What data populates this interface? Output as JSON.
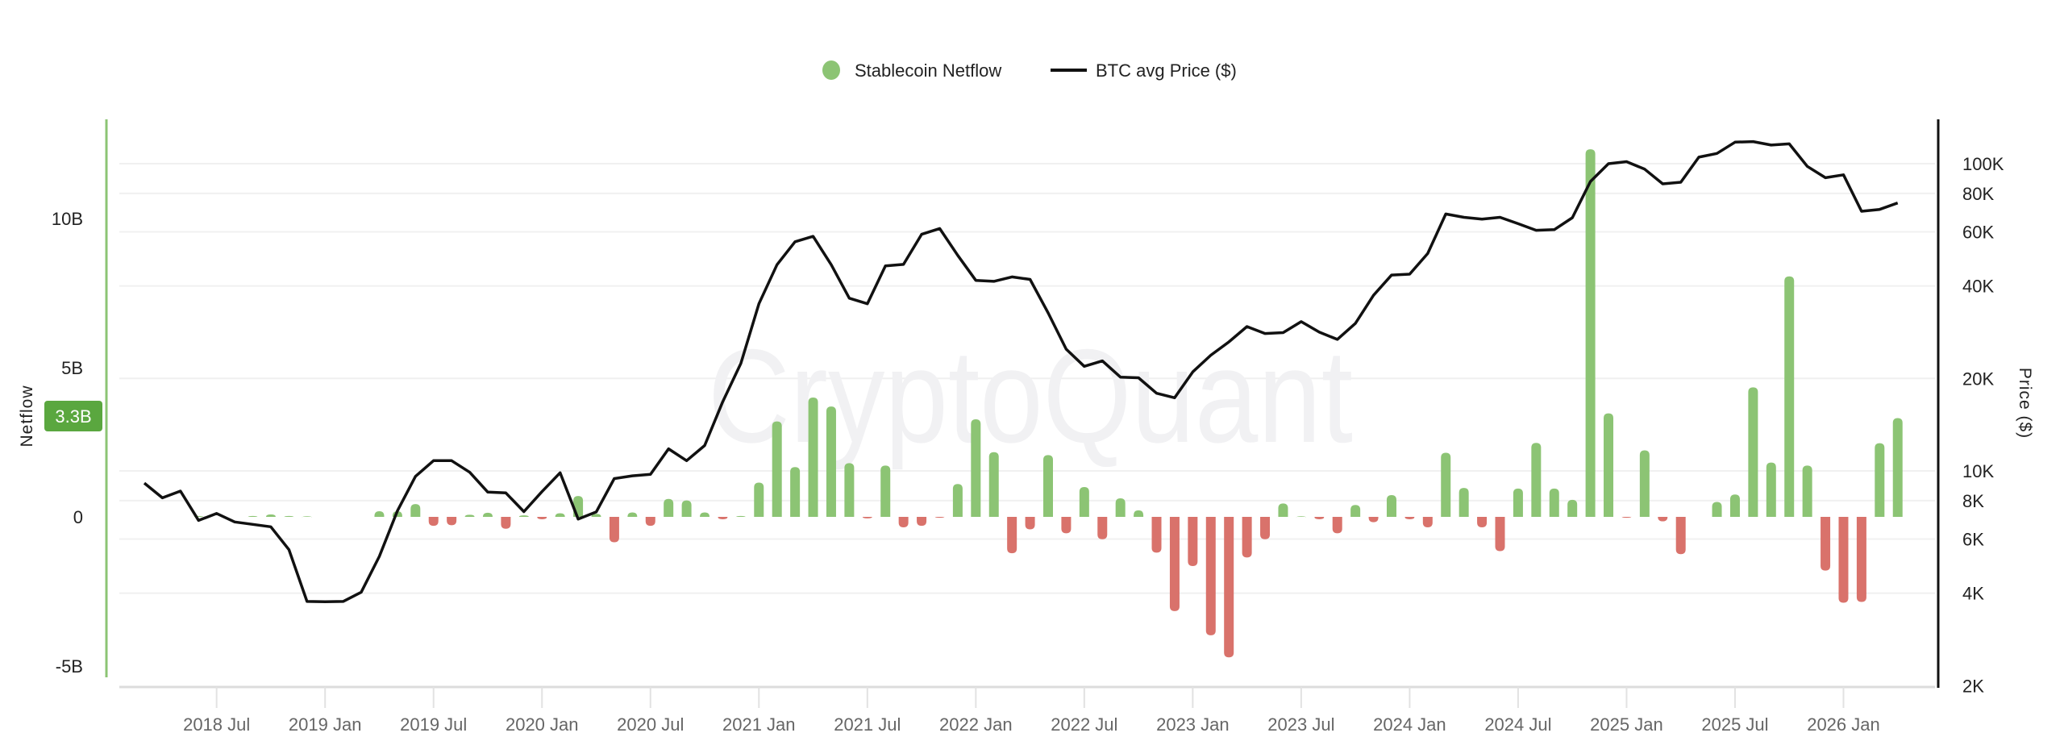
{
  "chart_data": {
    "type": "bar+line",
    "legend": {
      "placement": "top-center",
      "entries": [
        {
          "name": "Stablecoin Netflow",
          "marker": "circle",
          "color": "#8cc474"
        },
        {
          "name": "BTC avg Price ($)",
          "marker": "line",
          "color": "#111111"
        }
      ]
    },
    "watermark": "CryptoQuant",
    "colors": {
      "positive": "#8cc474",
      "negative": "#d9726b",
      "line": "#111111",
      "left_axis": "#8cc474",
      "badge": "#5aa73f"
    },
    "left_axis": {
      "title": "Netflow",
      "ticks": [
        {
          "v": -5,
          "label": "-5B"
        },
        {
          "v": 0,
          "label": "0"
        },
        {
          "v": 5,
          "label": "5B"
        },
        {
          "v": 10,
          "label": "10B"
        }
      ],
      "range": [
        -5.7,
        13.3
      ],
      "unit": "B",
      "last_value_badge": "3.3B"
    },
    "right_axis": {
      "title": "Price ($)",
      "scale": "log",
      "range": [
        2000,
        139000
      ],
      "ticks": [
        {
          "v": 2000,
          "label": "2K"
        },
        {
          "v": 4000,
          "label": "4K"
        },
        {
          "v": 6000,
          "label": "6K"
        },
        {
          "v": 8000,
          "label": "8K"
        },
        {
          "v": 10000,
          "label": "10K"
        },
        {
          "v": 20000,
          "label": "20K"
        },
        {
          "v": 40000,
          "label": "40K"
        },
        {
          "v": 60000,
          "label": "60K"
        },
        {
          "v": 80000,
          "label": "80K"
        },
        {
          "v": 100000,
          "label": "100K"
        }
      ]
    },
    "grid": true,
    "x_ticks": [
      {
        "date": "2018-07",
        "label": "2018 Jul"
      },
      {
        "date": "2019-01",
        "label": "2019 Jan"
      },
      {
        "date": "2019-07",
        "label": "2019 Jul"
      },
      {
        "date": "2020-01",
        "label": "2020 Jan"
      },
      {
        "date": "2020-07",
        "label": "2020 Jul"
      },
      {
        "date": "2021-01",
        "label": "2021 Jan"
      },
      {
        "date": "2021-07",
        "label": "2021 Jul"
      },
      {
        "date": "2022-01",
        "label": "2022 Jan"
      },
      {
        "date": "2022-07",
        "label": "2022 Jul"
      },
      {
        "date": "2023-01",
        "label": "2023 Jan"
      },
      {
        "date": "2023-07",
        "label": "2023 Jul"
      },
      {
        "date": "2024-01",
        "label": "2024 Jan"
      },
      {
        "date": "2024-07",
        "label": "2024 Jul"
      },
      {
        "date": "2025-01",
        "label": "2025 Jan"
      },
      {
        "date": "2025-07",
        "label": "2025 Jul"
      },
      {
        "date": "2026-01",
        "label": "2026 Jan"
      }
    ],
    "x": [
      "2018-03",
      "2018-04",
      "2018-05",
      "2018-06",
      "2018-07",
      "2018-08",
      "2018-09",
      "2018-10",
      "2018-11",
      "2018-12",
      "2019-01",
      "2019-02",
      "2019-03",
      "2019-04",
      "2019-05",
      "2019-06",
      "2019-07",
      "2019-08",
      "2019-09",
      "2019-10",
      "2019-11",
      "2019-12",
      "2020-01",
      "2020-02",
      "2020-03",
      "2020-04",
      "2020-05",
      "2020-06",
      "2020-07",
      "2020-08",
      "2020-09",
      "2020-10",
      "2020-11",
      "2020-12",
      "2021-01",
      "2021-02",
      "2021-03",
      "2021-04",
      "2021-05",
      "2021-06",
      "2021-07",
      "2021-08",
      "2021-09",
      "2021-10",
      "2021-11",
      "2021-12",
      "2022-01",
      "2022-02",
      "2022-03",
      "2022-04",
      "2022-05",
      "2022-06",
      "2022-07",
      "2022-08",
      "2022-09",
      "2022-10",
      "2022-11",
      "2022-12",
      "2023-01",
      "2023-02",
      "2023-03",
      "2023-04",
      "2023-05",
      "2023-06",
      "2023-07",
      "2023-08",
      "2023-09",
      "2023-10",
      "2023-11",
      "2023-12",
      "2024-01",
      "2024-02",
      "2024-03",
      "2024-04",
      "2024-05",
      "2024-06",
      "2024-07",
      "2024-08",
      "2024-09",
      "2024-10",
      "2024-11",
      "2024-12",
      "2025-01",
      "2025-02",
      "2025-03",
      "2025-04",
      "2025-05",
      "2025-06",
      "2025-07",
      "2025-08",
      "2025-09",
      "2025-10",
      "2025-11",
      "2025-12",
      "2026-01",
      "2026-02",
      "2026-03",
      "2026-04"
    ],
    "series": [
      {
        "name": "Stablecoin Netflow",
        "type": "bar",
        "axis": "left",
        "unit": "B",
        "values": [
          0,
          0,
          0,
          0.03,
          0,
          0,
          0.03,
          0.08,
          0.03,
          0.02,
          0,
          0,
          0,
          0.19,
          0.19,
          0.43,
          -0.3,
          -0.28,
          0.07,
          0.14,
          -0.4,
          0.05,
          -0.08,
          0.12,
          0.7,
          0.1,
          -0.85,
          0.15,
          -0.3,
          0.6,
          0.55,
          0.15,
          -0.08,
          0.03,
          1.15,
          3.2,
          1.67,
          4.0,
          3.7,
          1.8,
          -0.05,
          1.72,
          -0.35,
          -0.3,
          -0.03,
          1.1,
          3.27,
          2.17,
          -1.22,
          -0.42,
          2.07,
          -0.55,
          1.0,
          -0.75,
          0.62,
          0.22,
          -1.2,
          -3.16,
          -1.65,
          -3.97,
          -4.71,
          -1.36,
          -0.75,
          0.45,
          0.02,
          -0.08,
          -0.55,
          0.4,
          -0.18,
          0.73,
          -0.08,
          -0.35,
          2.15,
          0.97,
          -0.35,
          -1.15,
          0.95,
          2.48,
          0.95,
          0.57,
          12.32,
          3.47,
          -0.03,
          2.23,
          -0.15,
          -1.25,
          0,
          0.5,
          0.75,
          4.34,
          1.82,
          8.06,
          1.72,
          -1.8,
          -2.88,
          -2.85,
          2.47,
          3.31
        ]
      },
      {
        "name": "BTC avg Price ($)",
        "type": "line",
        "axis": "right",
        "values": [
          9130,
          8170,
          8600,
          6900,
          7270,
          6820,
          6700,
          6580,
          5540,
          3760,
          3750,
          3760,
          4030,
          5270,
          7410,
          9600,
          10800,
          10800,
          9900,
          8530,
          8480,
          7370,
          8560,
          9860,
          6970,
          7350,
          9440,
          9640,
          9750,
          11800,
          10800,
          12100,
          16800,
          22400,
          35000,
          46900,
          55700,
          58000,
          46900,
          36500,
          35000,
          46500,
          47000,
          58900,
          61500,
          50300,
          41700,
          41400,
          42800,
          42000,
          32700,
          24900,
          21900,
          22800,
          20200,
          20100,
          17900,
          17300,
          21000,
          23800,
          26300,
          29500,
          28000,
          28200,
          30600,
          28300,
          26800,
          30200,
          37300,
          43400,
          43700,
          51000,
          68600,
          66900,
          66000,
          66900,
          63800,
          60700,
          61000,
          66700,
          87500,
          100000,
          101500,
          96000,
          86000,
          87000,
          105000,
          108000,
          117500,
          118000,
          115000,
          116000,
          98000,
          90000,
          92000,
          70000,
          71000,
          74500
        ]
      }
    ]
  }
}
